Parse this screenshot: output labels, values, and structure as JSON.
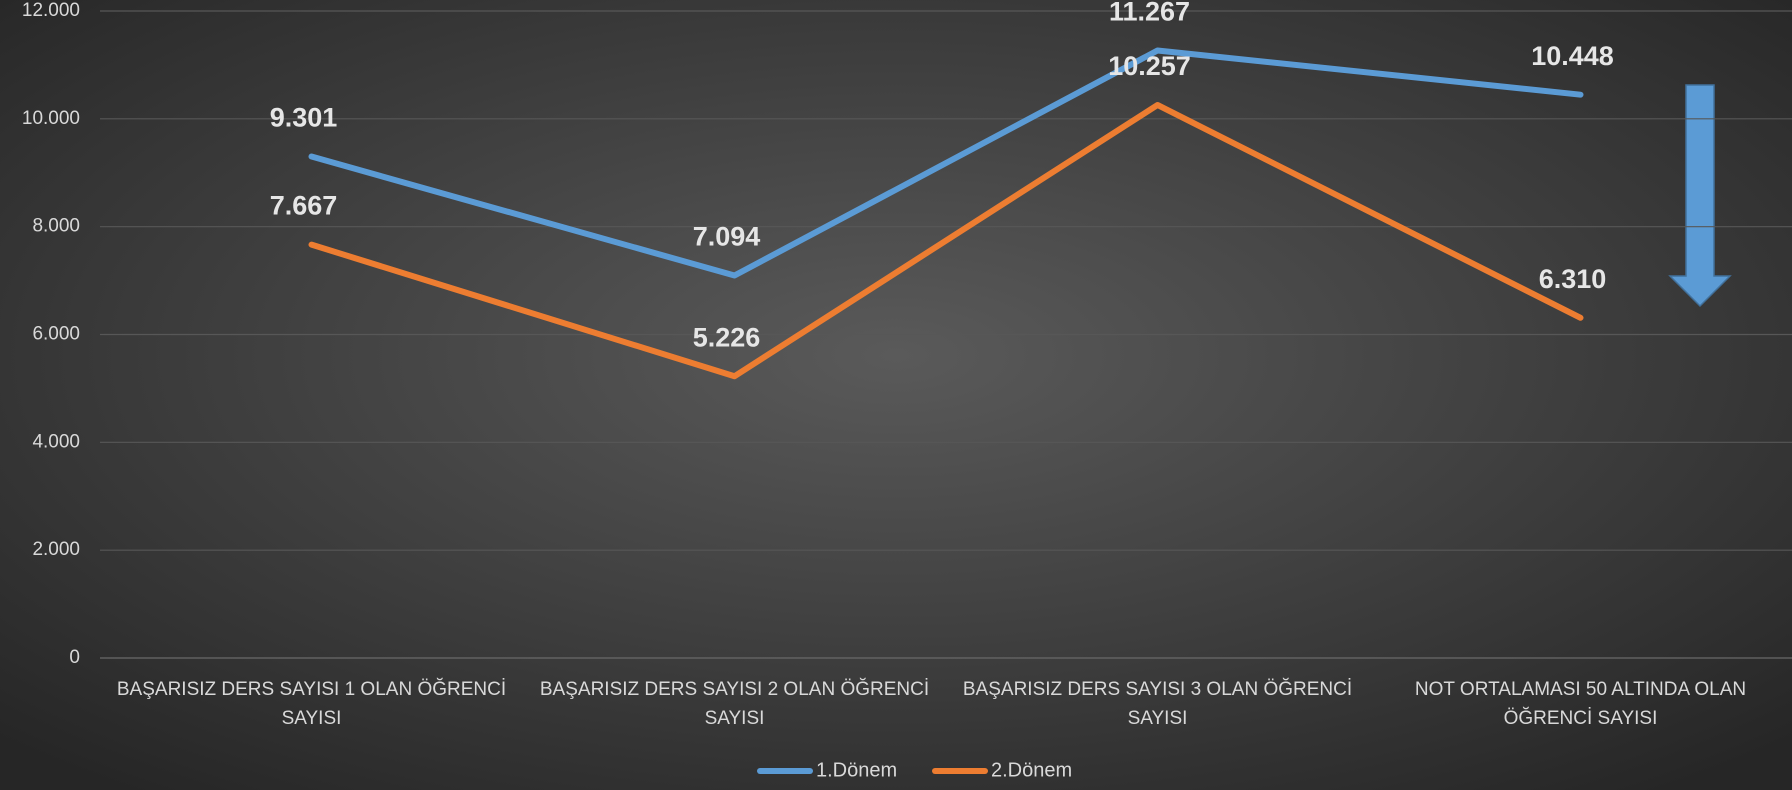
{
  "chart_data": {
    "type": "line",
    "categories": [
      "BAŞARISIZ DERS SAYISI 1 OLAN ÖĞRENCİ SAYISI",
      "BAŞARISIZ DERS SAYISI 2 OLAN ÖĞRENCİ SAYISI",
      "BAŞARISIZ DERS SAYISI 3 OLAN ÖĞRENCİ SAYISI",
      "NOT ORTALAMASI 50 ALTINDA OLAN ÖĞRENCİ SAYISI"
    ],
    "series": [
      {
        "name": "1.Dönem",
        "color": "#5b9bd5",
        "values": [
          9301,
          7094,
          11267,
          10448
        ],
        "value_labels": [
          "9.301",
          "7.094",
          "11.267",
          "10.448"
        ]
      },
      {
        "name": "2.Dönem",
        "color": "#ed7d31",
        "values": [
          7667,
          5226,
          10257,
          6310
        ],
        "value_labels": [
          "7.667",
          "5.226",
          "10.257",
          "6.310"
        ]
      }
    ],
    "ylim": [
      0,
      12000
    ],
    "yticks": [
      0,
      {
        "value": 2000,
        "label": "2.000"
      },
      {
        "value": 4000,
        "label": "4.000"
      },
      {
        "value": 6000,
        "label": "6.000"
      },
      {
        "value": 8000,
        "label": "8.000"
      },
      {
        "value": 10000,
        "label": "10.000"
      },
      {
        "value": 12000,
        "label": "12.000"
      }
    ],
    "grid": true,
    "legend": "bottom"
  }
}
